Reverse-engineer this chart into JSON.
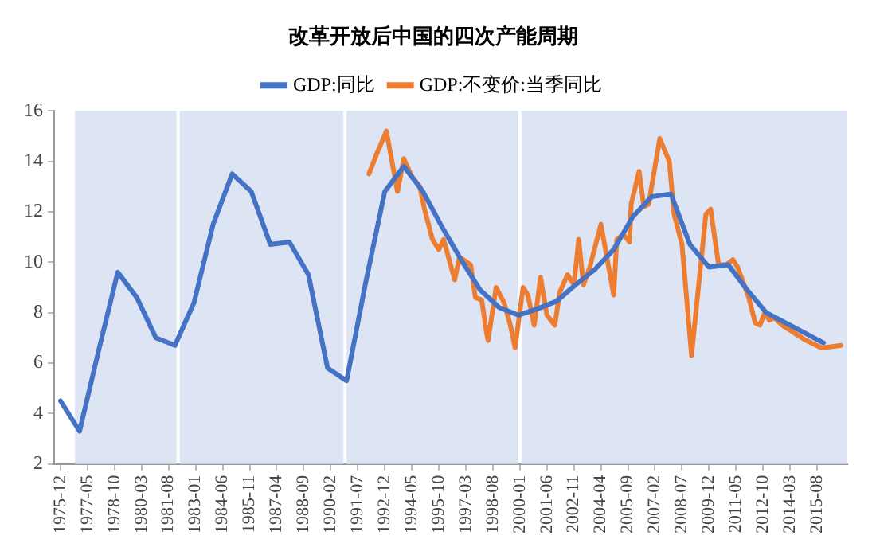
{
  "chart_data": {
    "type": "line",
    "title": "改革开放后中国的四次产能周期",
    "legend": "top",
    "grid": false,
    "marker": "none",
    "line_style": "solid",
    "xlim": [
      "1975-08",
      "2017-03"
    ],
    "xticks": [
      "1975-12",
      "1977-05",
      "1978-10",
      "1980-03",
      "1981-08",
      "1983-01",
      "1984-06",
      "1985-11",
      "1987-04",
      "1988-09",
      "1990-02",
      "1991-07",
      "1992-12",
      "1994-05",
      "1995-10",
      "1997-03",
      "1998-08",
      "2000-01",
      "2001-06",
      "2002-11",
      "2004-04",
      "2005-09",
      "2007-02",
      "2008-07",
      "2009-12",
      "2011-05",
      "2012-10",
      "2014-03",
      "2015-08"
    ],
    "ylim": [
      2,
      16
    ],
    "yticks": [
      2,
      4,
      6,
      8,
      10,
      12,
      14,
      16
    ],
    "bands": [
      {
        "axis": "x",
        "from": "1976-09",
        "to": "1982-01",
        "color": "#dde4f3"
      },
      {
        "axis": "x",
        "from": "1982-03",
        "to": "1990-10",
        "color": "#dde4f3"
      },
      {
        "axis": "x",
        "from": "1990-12",
        "to": "1999-12",
        "color": "#dde4f3"
      },
      {
        "axis": "x",
        "from": "2000-02",
        "to": "2017-03",
        "color": "#dde4f3"
      }
    ],
    "series": [
      {
        "name": "GDP:同比",
        "color": "#4472c4",
        "x": [
          "1975-12",
          "1976-12",
          "1977-12",
          "1978-12",
          "1979-12",
          "1980-12",
          "1981-12",
          "1982-12",
          "1983-12",
          "1984-12",
          "1985-12",
          "1986-12",
          "1987-12",
          "1988-12",
          "1989-12",
          "1990-12",
          "1991-12",
          "1992-12",
          "1993-12",
          "1994-12",
          "1995-12",
          "1996-12",
          "1997-12",
          "1998-12",
          "1999-12",
          "2000-12",
          "2001-12",
          "2002-12",
          "2003-12",
          "2004-12",
          "2005-12",
          "2006-12",
          "2007-12",
          "2008-12",
          "2009-12",
          "2010-12",
          "2011-12",
          "2012-12",
          "2013-12",
          "2014-12",
          "2015-12"
        ],
        "values": [
          4.5,
          3.3,
          6.5,
          9.6,
          8.6,
          7.0,
          6.7,
          8.4,
          11.5,
          13.5,
          12.8,
          10.7,
          10.8,
          9.5,
          5.8,
          5.3,
          9.2,
          12.8,
          13.8,
          12.8,
          11.4,
          10.1,
          8.9,
          8.2,
          7.9,
          8.15,
          8.45,
          9.1,
          9.7,
          10.5,
          11.8,
          12.6,
          12.7,
          10.7,
          9.8,
          9.9,
          8.9,
          8.0,
          7.6,
          7.2,
          6.8
        ]
      },
      {
        "name": "GDP:不变价:当季同比",
        "color": "#ed7d31",
        "x": [
          "1992-02",
          "1992-07",
          "1993-01",
          "1993-08",
          "1993-12",
          "1994-05",
          "1994-10",
          "1995-01",
          "1995-06",
          "1995-10",
          "1996-01",
          "1996-08",
          "1996-11",
          "1997-06",
          "1997-09",
          "1998-01",
          "1998-04",
          "1998-05",
          "1998-10",
          "1999-03",
          "1999-07",
          "1999-10",
          "2000-03",
          "2000-06",
          "2000-10",
          "2001-02",
          "2001-06",
          "2001-11",
          "2002-02",
          "2002-07",
          "2002-11",
          "2003-02",
          "2003-05",
          "2003-09",
          "2004-04",
          "2004-12",
          "2005-02",
          "2005-06",
          "2005-10",
          "2005-11",
          "2006-04",
          "2006-07",
          "2006-10",
          "2007-05",
          "2007-11",
          "2008-02",
          "2008-07",
          "2009-01",
          "2009-05",
          "2009-10",
          "2010-01",
          "2010-06",
          "2010-11",
          "2011-03",
          "2011-06",
          "2012-01",
          "2012-05",
          "2012-08",
          "2012-11",
          "2013-02",
          "2013-05",
          "2013-10",
          "2014-03",
          "2014-08",
          "2015-01",
          "2015-11",
          "2016-11"
        ],
        "values": [
          13.5,
          14.3,
          15.2,
          12.8,
          14.1,
          13.4,
          13.0,
          12.1,
          10.9,
          10.5,
          10.9,
          9.3,
          10.2,
          9.9,
          8.6,
          8.5,
          7.2,
          6.9,
          9.0,
          8.4,
          7.5,
          6.6,
          9.0,
          8.7,
          7.5,
          9.4,
          7.9,
          7.5,
          8.8,
          9.5,
          9.1,
          10.9,
          9.1,
          9.8,
          11.5,
          8.7,
          10.9,
          11.1,
          10.8,
          12.3,
          13.6,
          12.2,
          12.3,
          14.9,
          14.0,
          11.9,
          10.7,
          6.3,
          8.8,
          11.9,
          12.1,
          9.9,
          9.9,
          10.1,
          9.8,
          8.6,
          7.6,
          7.5,
          8.0,
          7.7,
          7.8,
          7.5,
          7.3,
          7.1,
          6.9,
          6.6,
          6.7
        ]
      }
    ]
  }
}
